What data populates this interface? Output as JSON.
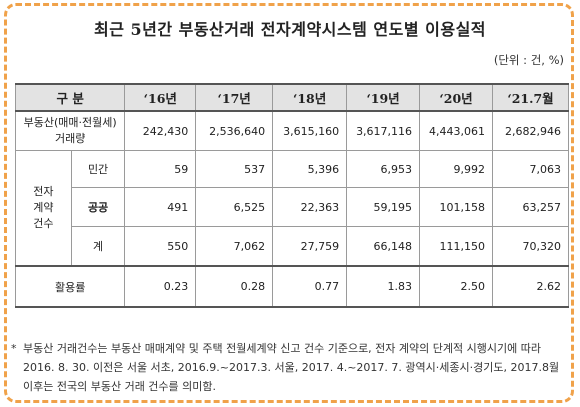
{
  "title": "최근 5년간 부동산거래 전자계약시스템 연도별 이용실적",
  "unit": "(단위 : 건, %)",
  "columns": [
    "구 분",
    "‘16년",
    "‘17년",
    "‘18년",
    "‘19년",
    "‘20년",
    "‘21.7월"
  ],
  "rows": {
    "transactions": {
      "label": "부동산(매매·전월세)거래량",
      "values": [
        "242,430",
        "2,536,640",
        "3,615,160",
        "3,617,116",
        "4,443,061",
        "2,682,946"
      ]
    },
    "group_label": "전자계약건수",
    "private": {
      "label": "민간",
      "values": [
        "59",
        "537",
        "5,396",
        "6,953",
        "9,992",
        "7,063"
      ]
    },
    "public": {
      "label": "공공",
      "values": [
        "491",
        "6,525",
        "22,363",
        "59,195",
        "101,158",
        "63,257"
      ]
    },
    "total": {
      "label": "계",
      "values": [
        "550",
        "7,062",
        "27,759",
        "66,148",
        "111,150",
        "70,320"
      ]
    },
    "usage": {
      "label": "활용률",
      "values": [
        "0.23",
        "0.28",
        "0.77",
        "1.83",
        "2.50",
        "2.62"
      ]
    }
  },
  "note": {
    "mark": "*",
    "text": "부동산 거래건수는 부동산 매매계약 및 주택 전월세계약 신고 건수 기준으로, 전자 계약의 단계적 시행시기에 따라 2016. 8. 30. 이전은 서울 서초, 2016.9.~2017.3. 서울, 2017. 4.~2017. 7. 광역시·세종시·경기도, 2017.8월 이후는 전국의 부동산 거래 건수를 의미함."
  },
  "colors": {
    "frame": "#f0a24a",
    "header_bg": "#e3e3e3"
  }
}
